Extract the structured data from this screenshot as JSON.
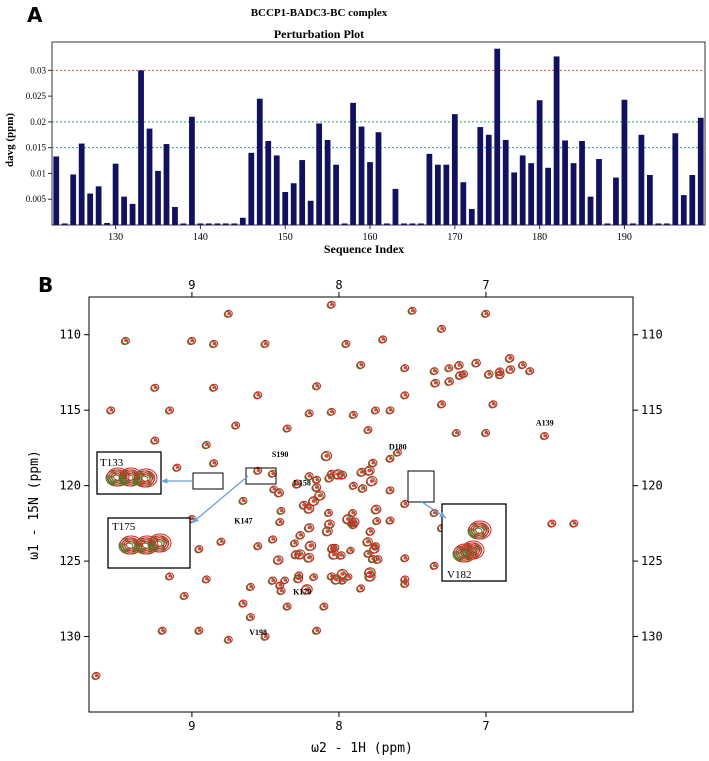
{
  "panel_a_label": "A",
  "panel_b_label": "B",
  "chart_data": [
    {
      "type": "bar",
      "title": "BCCP1-BADC3-BC complex",
      "subtitle": "Perturbation Plot",
      "xlabel": "Sequence Index",
      "ylabel": "davg (ppm)",
      "xlim": [
        122.5,
        199.5
      ],
      "ylim": [
        0,
        0.0355
      ],
      "xticks": [
        130,
        140,
        150,
        160,
        170,
        180,
        190
      ],
      "yticks": [
        0.005,
        0.01,
        0.015,
        0.02,
        0.025,
        0.03
      ],
      "ytick_labels": [
        "0.005",
        "0.01",
        "0.015",
        "0.02",
        "0.025",
        "0.03"
      ],
      "grid": false,
      "x": [
        123,
        124,
        125,
        126,
        127,
        128,
        129,
        130,
        131,
        132,
        133,
        134,
        135,
        136,
        137,
        138,
        139,
        140,
        141,
        142,
        143,
        144,
        145,
        146,
        147,
        148,
        149,
        150,
        151,
        152,
        153,
        154,
        155,
        156,
        157,
        158,
        159,
        160,
        161,
        162,
        163,
        164,
        165,
        166,
        167,
        168,
        169,
        170,
        171,
        172,
        173,
        174,
        175,
        176,
        177,
        178,
        179,
        180,
        181,
        182,
        183,
        184,
        185,
        186,
        187,
        188,
        189,
        190,
        191,
        192,
        193,
        194,
        195,
        196,
        197,
        198,
        199
      ],
      "values": [
        0.0133,
        0.0003,
        0.0098,
        0.0158,
        0.0061,
        0.0075,
        0.0004,
        0.0119,
        0.0055,
        0.0041,
        0.03,
        0.0187,
        0.0105,
        0.0157,
        0.0035,
        0.0003,
        0.021,
        0.0003,
        0.0003,
        0.0003,
        0.0003,
        0.0003,
        0.0014,
        0.014,
        0.0245,
        0.0163,
        0.0135,
        0.0064,
        0.0081,
        0.0126,
        0.0047,
        0.0197,
        0.0165,
        0.0117,
        0.0003,
        0.0237,
        0.0191,
        0.0122,
        0.018,
        0.0003,
        0.007,
        0.0003,
        0.0003,
        0.0003,
        0.0138,
        0.0117,
        0.0117,
        0.0215,
        0.0083,
        0.0031,
        0.019,
        0.0175,
        0.0342,
        0.0165,
        0.0102,
        0.0135,
        0.012,
        0.0242,
        0.0111,
        0.0327,
        0.0164,
        0.012,
        0.0163,
        0.0055,
        0.0128,
        0.0003,
        0.0092,
        0.0243,
        0.0003,
        0.0175,
        0.0097,
        0.0003,
        0.0003,
        0.0178,
        0.0058,
        0.0097,
        0.0208
      ],
      "reference_lines": [
        {
          "y": 0.03,
          "color": "#e05050"
        },
        {
          "y": 0.02,
          "color": "#2e9a5a"
        },
        {
          "y": 0.015,
          "color": "#3a8fbf"
        }
      ],
      "bar_color": "#121160"
    },
    {
      "type": "scatter",
      "title": "",
      "xlabel": "ω2 - 1H (ppm)",
      "ylabel": "ω1 - 15N (ppm)",
      "x_axis_reversed": true,
      "y_axis_reversed": true,
      "xlim": [
        9.7,
        6.0
      ],
      "ylim": [
        107.5,
        135.0
      ],
      "xticks": [
        9,
        8,
        7
      ],
      "yticks": [
        110,
        115,
        120,
        125,
        130
      ],
      "series": [
        {
          "name": "",
          "color": "#2e8b2e"
        },
        {
          "name": "",
          "color": "#e02020"
        }
      ],
      "peaks": [
        [
          8.75,
          108.6
        ],
        [
          8.05,
          108.0
        ],
        [
          7.5,
          108.4
        ],
        [
          7.0,
          108.6
        ],
        [
          7.3,
          109.6
        ],
        [
          9.45,
          110.4
        ],
        [
          9.0,
          110.4
        ],
        [
          8.85,
          110.6
        ],
        [
          8.5,
          110.6
        ],
        [
          7.95,
          110.6
        ],
        [
          7.7,
          110.3
        ],
        [
          7.85,
          112.0
        ],
        [
          7.55,
          112.2
        ],
        [
          7.35,
          112.4
        ],
        [
          7.25,
          112.2
        ],
        [
          7.15,
          112.6
        ],
        [
          6.75,
          112.0
        ],
        [
          6.7,
          112.4
        ],
        [
          9.25,
          113.5
        ],
        [
          8.85,
          113.5
        ],
        [
          8.15,
          113.4
        ],
        [
          8.55,
          114.0
        ],
        [
          7.55,
          114.0
        ],
        [
          7.3,
          114.6
        ],
        [
          6.95,
          114.6
        ],
        [
          9.55,
          115.0
        ],
        [
          9.15,
          115.0
        ],
        [
          8.2,
          115.2
        ],
        [
          8.05,
          115.1
        ],
        [
          7.9,
          115.3
        ],
        [
          7.75,
          115.0
        ],
        [
          7.65,
          115.0
        ],
        [
          8.7,
          116.0
        ],
        [
          8.35,
          116.2
        ],
        [
          7.8,
          116.3
        ],
        [
          7.2,
          116.5
        ],
        [
          7.0,
          116.5
        ],
        [
          9.25,
          117.0
        ],
        [
          8.9,
          117.3
        ],
        [
          6.6,
          116.7
        ],
        [
          7.65,
          118.2
        ],
        [
          7.6,
          117.8
        ],
        [
          8.55,
          119.0
        ],
        [
          8.45,
          119.2
        ],
        [
          8.85,
          118.5
        ],
        [
          9.1,
          118.8
        ],
        [
          9.55,
          119.7
        ],
        [
          8.15,
          119.6
        ],
        [
          8.05,
          119.2
        ],
        [
          7.9,
          120.0
        ],
        [
          7.65,
          120.3
        ],
        [
          8.65,
          121.0
        ],
        [
          7.55,
          121.2
        ],
        [
          7.35,
          121.8
        ],
        [
          9.0,
          122.2
        ],
        [
          8.4,
          122.4
        ],
        [
          7.9,
          122.6
        ],
        [
          7.65,
          122.3
        ],
        [
          7.3,
          122.8
        ],
        [
          8.8,
          123.7
        ],
        [
          8.55,
          124.0
        ],
        [
          8.95,
          124.2
        ],
        [
          7.8,
          124.5
        ],
        [
          7.55,
          124.8
        ],
        [
          7.35,
          125.3
        ],
        [
          7.55,
          126.2
        ],
        [
          6.55,
          122.5
        ],
        [
          6.4,
          122.5
        ],
        [
          9.15,
          126.0
        ],
        [
          8.9,
          126.2
        ],
        [
          8.6,
          126.7
        ],
        [
          8.4,
          126.6
        ],
        [
          7.85,
          126.8
        ],
        [
          9.05,
          127.3
        ],
        [
          8.65,
          127.8
        ],
        [
          8.1,
          128.0
        ],
        [
          8.6,
          128.7
        ],
        [
          8.95,
          129.6
        ],
        [
          9.2,
          129.6
        ],
        [
          8.15,
          129.6
        ],
        [
          8.75,
          130.2
        ],
        [
          8.5,
          130.0
        ],
        [
          7.55,
          126.5
        ],
        [
          8.35,
          128.0
        ],
        [
          8.05,
          126.0
        ],
        [
          7.75,
          124.0
        ],
        [
          9.65,
          132.6
        ]
      ],
      "annotations": [
        {
          "text": "A139",
          "x": 6.6,
          "y": 116.0
        },
        {
          "text": "S190",
          "x": 8.4,
          "y": 118.1
        },
        {
          "text": "D180",
          "x": 7.6,
          "y": 117.6
        },
        {
          "text": "L158",
          "x": 8.25,
          "y": 120.0
        },
        {
          "text": "K147",
          "x": 8.65,
          "y": 122.5
        },
        {
          "text": "K170",
          "x": 8.25,
          "y": 127.2
        },
        {
          "text": "V198",
          "x": 8.55,
          "y": 129.9
        }
      ],
      "insets": [
        {
          "label": "T133"
        },
        {
          "label": "T175"
        },
        {
          "label": "V182"
        }
      ]
    }
  ]
}
